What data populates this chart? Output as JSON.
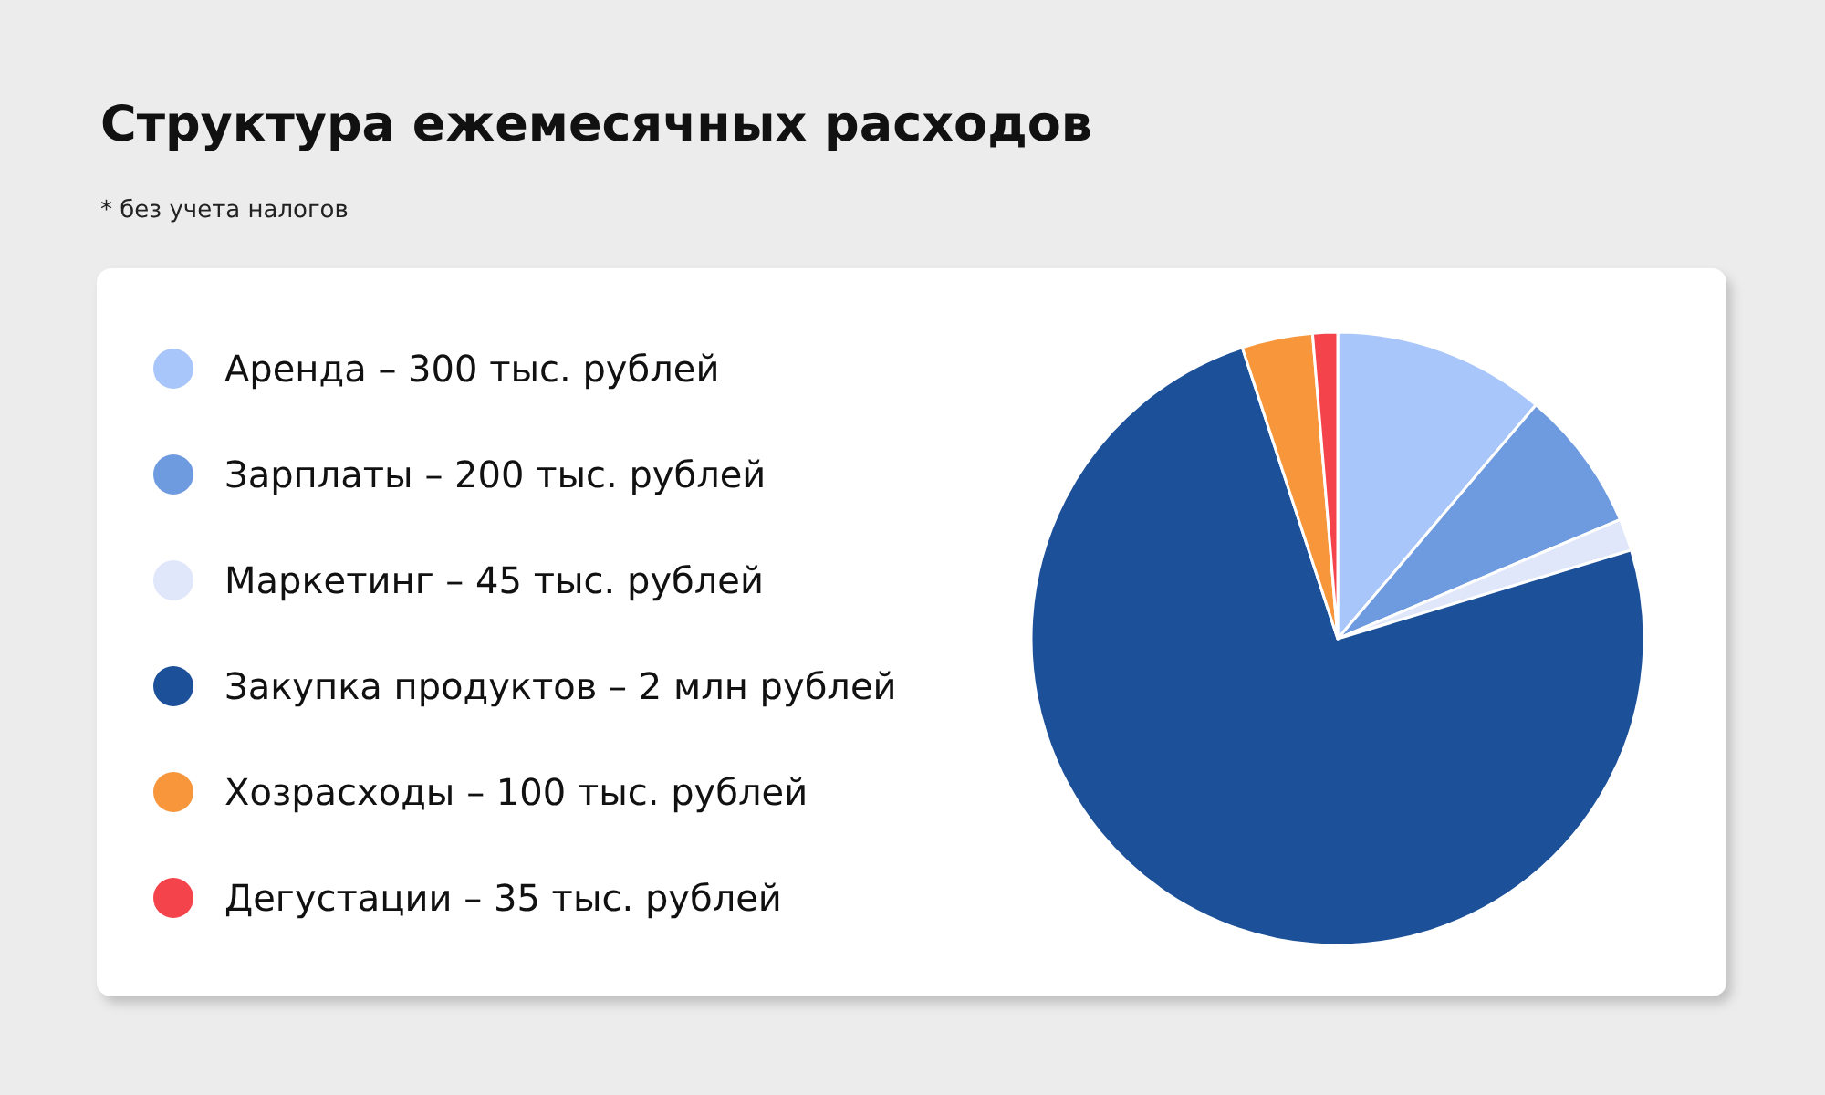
{
  "chart_data": {
    "type": "pie",
    "title": "Структура ежемесячных расходов",
    "subtitle": "* без учета налогов",
    "categories": [
      "Аренда – 300 тыс. рублей",
      "Зарплаты – 200 тыс. рублей",
      "Маркетинг – 45 тыс. рублей",
      "Закупка продуктов – 2 млн рублей",
      "Хозрасходы – 100 тыс. рублей",
      "Дегустации – 35 тыс. рублей"
    ],
    "values": [
      11.19,
      7.46,
      1.68,
      74.63,
      3.73,
      1.31
    ],
    "colors": [
      "#a9c6fb",
      "#6e9be0",
      "#e0e7fb",
      "#1c5099",
      "#f7963b",
      "#f5434b"
    ],
    "legend": "left"
  }
}
